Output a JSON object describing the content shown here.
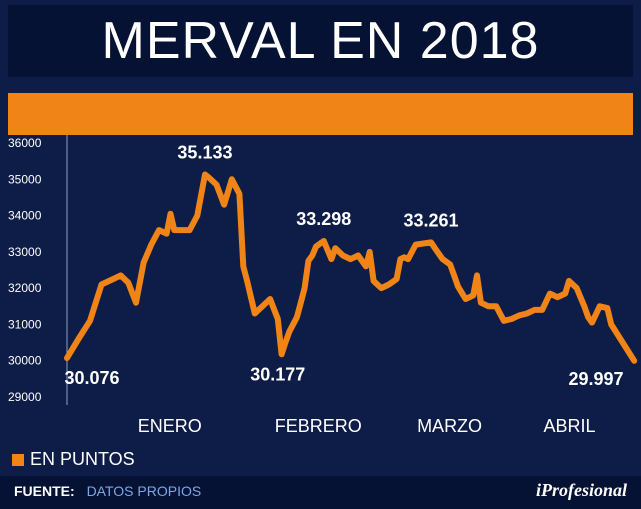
{
  "title": "MERVAL EN 2018",
  "colors": {
    "line": "#f08416",
    "background": "#0d1d47",
    "title_bg": "#061233",
    "band": "#f08416",
    "source_value": "#7aa7e8"
  },
  "legend": {
    "label": "EN PUNTOS"
  },
  "source": {
    "label": "FUENTE:",
    "value": "DATOS PROPIOS"
  },
  "logo": {
    "text": "iProfesional"
  },
  "chart_data": {
    "type": "line",
    "title": "MERVAL EN 2018",
    "xlabel": "",
    "ylabel": "",
    "ylim": [
      29000,
      36000
    ],
    "yticks": [
      {
        "value": 36000,
        "label": "36000"
      },
      {
        "value": 35000,
        "label": "35000"
      },
      {
        "value": 34000,
        "label": "34000"
      },
      {
        "value": 33000,
        "label": "33000"
      },
      {
        "value": 32000,
        "label": "32000"
      },
      {
        "value": 31000,
        "label": "31000"
      },
      {
        "value": 30000,
        "label": "30000"
      },
      {
        "value": 29000,
        "label": "29000"
      }
    ],
    "grid": false,
    "months": [
      "ENERO",
      "FEBRERO",
      "MARZO",
      "ABRIL"
    ],
    "series": [
      {
        "name": "EN PUNTOS",
        "x": [
          0,
          3,
          6,
          9,
          12,
          14,
          16,
          18,
          20,
          22,
          24,
          26,
          27,
          28,
          30,
          32,
          34,
          36,
          37,
          38,
          39,
          41,
          43,
          45,
          46,
          47,
          49,
          51,
          53,
          55,
          56,
          57,
          58,
          60,
          61,
          62,
          63,
          64,
          65,
          67,
          69,
          70,
          72,
          74,
          75,
          76,
          78,
          79,
          80,
          82,
          84,
          86,
          87,
          88,
          89,
          91,
          93,
          95,
          96,
          98,
          100,
          101,
          102,
          104,
          106,
          107,
          108,
          110,
          112,
          114,
          116,
          117,
          118,
          120,
          121,
          122,
          124,
          126,
          128,
          129,
          130,
          131,
          133,
          135,
          136,
          137,
          139,
          141,
          142
        ],
        "values": [
          30076,
          30600,
          31100,
          32100,
          32250,
          32350,
          32150,
          31600,
          32700,
          33200,
          33600,
          33500,
          34050,
          33600,
          33600,
          33600,
          34000,
          35133,
          35050,
          34950,
          34850,
          34300,
          35000,
          34600,
          32600,
          32200,
          31300,
          31500,
          31700,
          31150,
          30177,
          30500,
          30800,
          31200,
          31600,
          32000,
          32750,
          32900,
          33150,
          33298,
          32800,
          33100,
          32900,
          32800,
          32850,
          32900,
          32600,
          33000,
          32200,
          32000,
          32100,
          32250,
          32800,
          32850,
          32800,
          33200,
          33230,
          33261,
          33100,
          32800,
          32650,
          32350,
          32050,
          31700,
          31800,
          32350,
          31600,
          31500,
          31500,
          31100,
          31150,
          31200,
          31250,
          31300,
          31350,
          31400,
          31400,
          31850,
          31750,
          31800,
          31850,
          32200,
          32000,
          31500,
          31200,
          31050,
          31500,
          31450,
          31000
        ]
      }
    ],
    "data_labels": [
      {
        "x": 0,
        "value": 30076,
        "label": "30.076",
        "pos": "below"
      },
      {
        "x": 36,
        "value": 35133,
        "label": "35.133",
        "pos": "above"
      },
      {
        "x": 55,
        "value": 30177,
        "label": "30.177",
        "pos": "below"
      },
      {
        "x": 67,
        "value": 33298,
        "label": "33.298",
        "pos": "above"
      },
      {
        "x": 95,
        "value": 33261,
        "label": "33.261",
        "pos": "above"
      },
      {
        "x": 148,
        "value": 29997,
        "label": "29.997",
        "pos": "below-left"
      }
    ]
  }
}
